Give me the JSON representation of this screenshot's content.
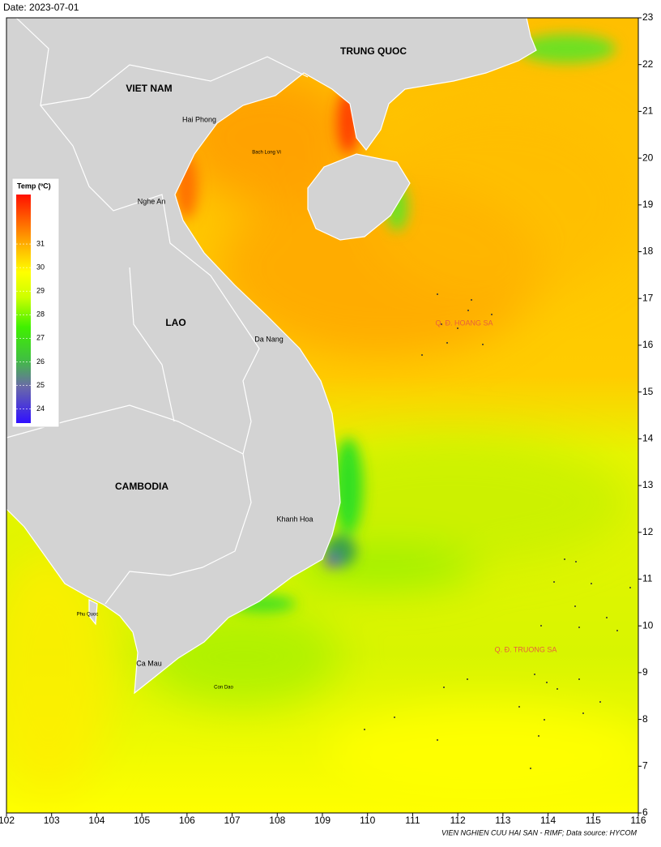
{
  "date": "Date: 2023-07-01",
  "map": {
    "xlim": [
      102,
      116
    ],
    "ylim": [
      6,
      23
    ],
    "xticks": [
      102,
      103,
      104,
      105,
      106,
      107,
      108,
      109,
      110,
      111,
      112,
      113,
      114,
      115,
      116
    ],
    "yticks": [
      6,
      7,
      8,
      9,
      10,
      11,
      12,
      13,
      14,
      15,
      16,
      17,
      18,
      19,
      20,
      21,
      22,
      23
    ]
  },
  "legend": {
    "title": "Temp (ºC)",
    "lim": [
      23.4,
      33.1
    ],
    "ticks": [
      24,
      25,
      26,
      27,
      28,
      29,
      30,
      31
    ]
  },
  "places": {
    "viet_nam": "VIET NAM",
    "trung_quoc": "TRUNG QUOC",
    "lao": "LAO",
    "cambodia": "CAMBODIA",
    "hai_phong": "Hai Phong",
    "bach_long_vi": "Bach Long Vi",
    "nghe_an": "Nghe An",
    "da_nang": "Da Nang",
    "khanh_hoa": "Khanh Hoa",
    "phu_quoc": "Phu Quoc",
    "ca_mau": "Ca Mau",
    "con_dao": "Con Dao",
    "hoang_sa": "Q. Đ. HOANG SA",
    "truong_sa": "Q. Đ. TRUONG SA"
  },
  "credit": "VIEN NGHIEN CUU HAI SAN - RIMF; Data source: HYCOM"
}
